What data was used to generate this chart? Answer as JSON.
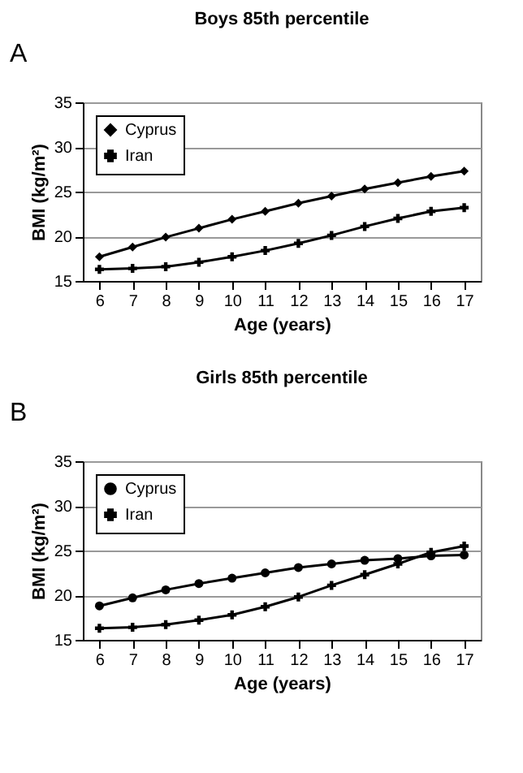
{
  "chart_data": [
    {
      "type": "line",
      "title": "Boys 85th percentile",
      "annotations": [
        "A"
      ],
      "xlabel": "Age (years)",
      "ylabel": "BMI (kg/m²)",
      "categories": [
        "6",
        "7",
        "8",
        "9",
        "10",
        "11",
        "12",
        "13",
        "14",
        "15",
        "16",
        "17"
      ],
      "series": [
        {
          "name": "Cyprus",
          "color": "#000000",
          "marker": "diamond",
          "values": [
            17.7,
            18.8,
            19.9,
            20.9,
            21.9,
            22.8,
            23.7,
            24.5,
            25.3,
            26.0,
            26.7,
            27.3
          ]
        },
        {
          "name": "Iran",
          "color": "#000000",
          "marker": "cross",
          "values": [
            16.3,
            16.4,
            16.6,
            17.1,
            17.7,
            18.4,
            19.2,
            20.1,
            21.1,
            22.0,
            22.8,
            23.2
          ]
        }
      ],
      "ylim": [
        15,
        35
      ],
      "yticks": [
        15,
        20,
        25,
        30,
        35
      ],
      "grid": "y",
      "legend": "top left",
      "line_style": "solid"
    },
    {
      "type": "line",
      "title": "Girls 85th percentile",
      "annotations": [
        "B"
      ],
      "xlabel": "Age (years)",
      "ylabel": "BMI (kg/m²)",
      "categories": [
        "6",
        "7",
        "8",
        "9",
        "10",
        "11",
        "12",
        "13",
        "14",
        "15",
        "16",
        "17"
      ],
      "series": [
        {
          "name": "Cyprus",
          "color": "#000000",
          "marker": "circle",
          "values": [
            18.8,
            19.7,
            20.6,
            21.3,
            21.9,
            22.5,
            23.1,
            23.5,
            23.9,
            24.1,
            24.4,
            24.5
          ]
        },
        {
          "name": "Iran",
          "color": "#000000",
          "marker": "cross",
          "values": [
            16.3,
            16.4,
            16.7,
            17.2,
            17.8,
            18.7,
            19.8,
            21.1,
            22.3,
            23.5,
            24.8,
            25.5
          ]
        }
      ],
      "ylim": [
        15,
        35
      ],
      "yticks": [
        15,
        20,
        25,
        30,
        35
      ],
      "grid": "y",
      "legend": "top left",
      "line_style": "solid"
    }
  ]
}
